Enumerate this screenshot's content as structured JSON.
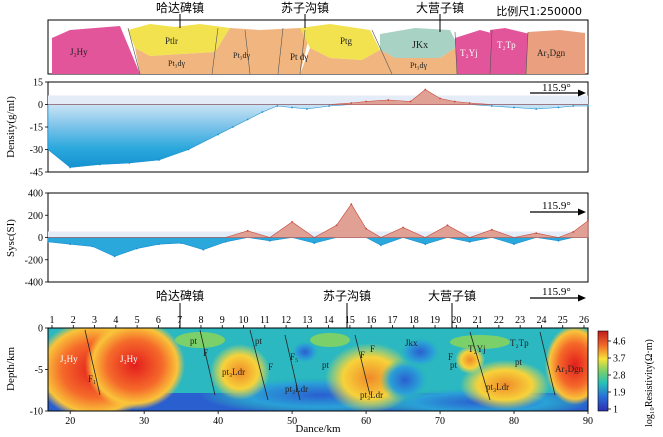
{
  "figure": {
    "scale_label": "比例尺1:250000",
    "towns": [
      "哈达碑镇",
      "苏子沟镇",
      "大营子镇"
    ],
    "colors": {
      "pink": "#e2559a",
      "yellow": "#f2e24f",
      "orange": "#f1b57f",
      "teal": "#a8d2c3",
      "salmon": "#eaa07e",
      "cyan": "#2aa8dc",
      "red": "#c8463a"
    }
  },
  "geology": {
    "units": [
      "J₃Hy",
      "Ptlr",
      "Pt₃dγ",
      "Pt₃dγ",
      "Pt dγ",
      "Ptg",
      "JKx",
      "Pt₃dγ",
      "T₂Yj",
      "T₂Tp",
      "Ar₃Dgn"
    ]
  },
  "chart_data": [
    {
      "type": "area",
      "panel": "density",
      "ylabel": "Density(g/ml)",
      "ylim": [
        -45,
        15
      ],
      "yticks": [
        15,
        0,
        -15,
        -30,
        -45
      ],
      "ytick_labels": [
        "15",
        "0",
        "-15",
        "-30",
        "-45"
      ],
      "strike_label": "115.9°",
      "x": [
        17,
        20,
        24,
        28,
        32,
        36,
        40,
        42,
        44,
        46,
        48,
        50,
        52,
        55,
        58,
        60,
        63,
        66,
        68,
        70,
        72,
        74,
        77,
        80,
        83,
        86,
        88,
        90
      ],
      "series": [
        {
          "values": [
            -30,
            -42,
            -40,
            -39,
            -37,
            -30,
            -20,
            -15,
            -10,
            -5,
            -1,
            -2,
            -3,
            -1,
            1,
            2,
            3,
            2,
            10,
            4,
            2,
            1,
            -1,
            -2,
            -3,
            -2,
            -1,
            -1
          ]
        }
      ]
    },
    {
      "type": "area",
      "panel": "susceptibility",
      "ylabel": "Sysc(SI)",
      "ylim": [
        -400,
        400
      ],
      "yticks": [
        400,
        200,
        0,
        -200,
        -400
      ],
      "ytick_labels": [
        "400",
        "200",
        "0",
        "-200",
        "-400"
      ],
      "strike_label": "115.9°",
      "x": [
        17,
        20,
        23,
        26,
        29,
        32,
        35,
        38,
        41,
        44,
        47,
        50,
        53,
        56,
        58,
        60,
        62,
        65,
        68,
        71,
        74,
        77,
        80,
        83,
        86,
        88,
        90
      ],
      "series": [
        {
          "values": [
            -40,
            -60,
            -80,
            -170,
            -100,
            -60,
            -50,
            -110,
            -40,
            60,
            -30,
            140,
            -50,
            110,
            300,
            80,
            -70,
            90,
            -60,
            110,
            -40,
            70,
            -60,
            40,
            -30,
            50,
            150
          ]
        }
      ]
    },
    {
      "type": "heatmap",
      "panel": "resistivity",
      "xlabel": "Dance/km",
      "ylabel": "Depth/km",
      "xlim": [
        17,
        90
      ],
      "ylim": [
        -10,
        0
      ],
      "xticks": [
        20,
        30,
        40,
        50,
        60,
        70,
        80,
        90
      ],
      "xtick_labels": [
        "20",
        "30",
        "40",
        "50",
        "60",
        "70",
        "80",
        "90"
      ],
      "yticks": [
        0,
        -5,
        -10
      ],
      "ytick_labels": [
        "0",
        "-5",
        "-10"
      ],
      "station_labels": [
        "1",
        "2",
        "3",
        "4",
        "5",
        "6",
        "7",
        "8",
        "9",
        "10",
        "11",
        "12",
        "13",
        "14",
        "15",
        "16",
        "17",
        "18",
        "19",
        "20",
        "21",
        "22",
        "23",
        "24",
        "25",
        "26"
      ],
      "colorbar": {
        "label": "log₁₀Resistivity(Ω·m)",
        "tick_labels": [
          "4.6",
          "3.7",
          "2.8",
          "1.9",
          "1"
        ]
      },
      "strike_label": "115.9°",
      "annotations": [
        "J₃Hy",
        "F₁",
        "J₃Hy",
        "pt",
        "F",
        "pt₃Ldr",
        "pt",
        "F",
        "F₅",
        "pt₃Ldr",
        "pt",
        "F",
        "F",
        "Jkx",
        "T₂Yj",
        "T₂Tp",
        "Ar₃Dgn",
        "pt₃Ldr",
        "pt₃Ldr",
        "pt",
        "pt",
        "F"
      ]
    }
  ]
}
